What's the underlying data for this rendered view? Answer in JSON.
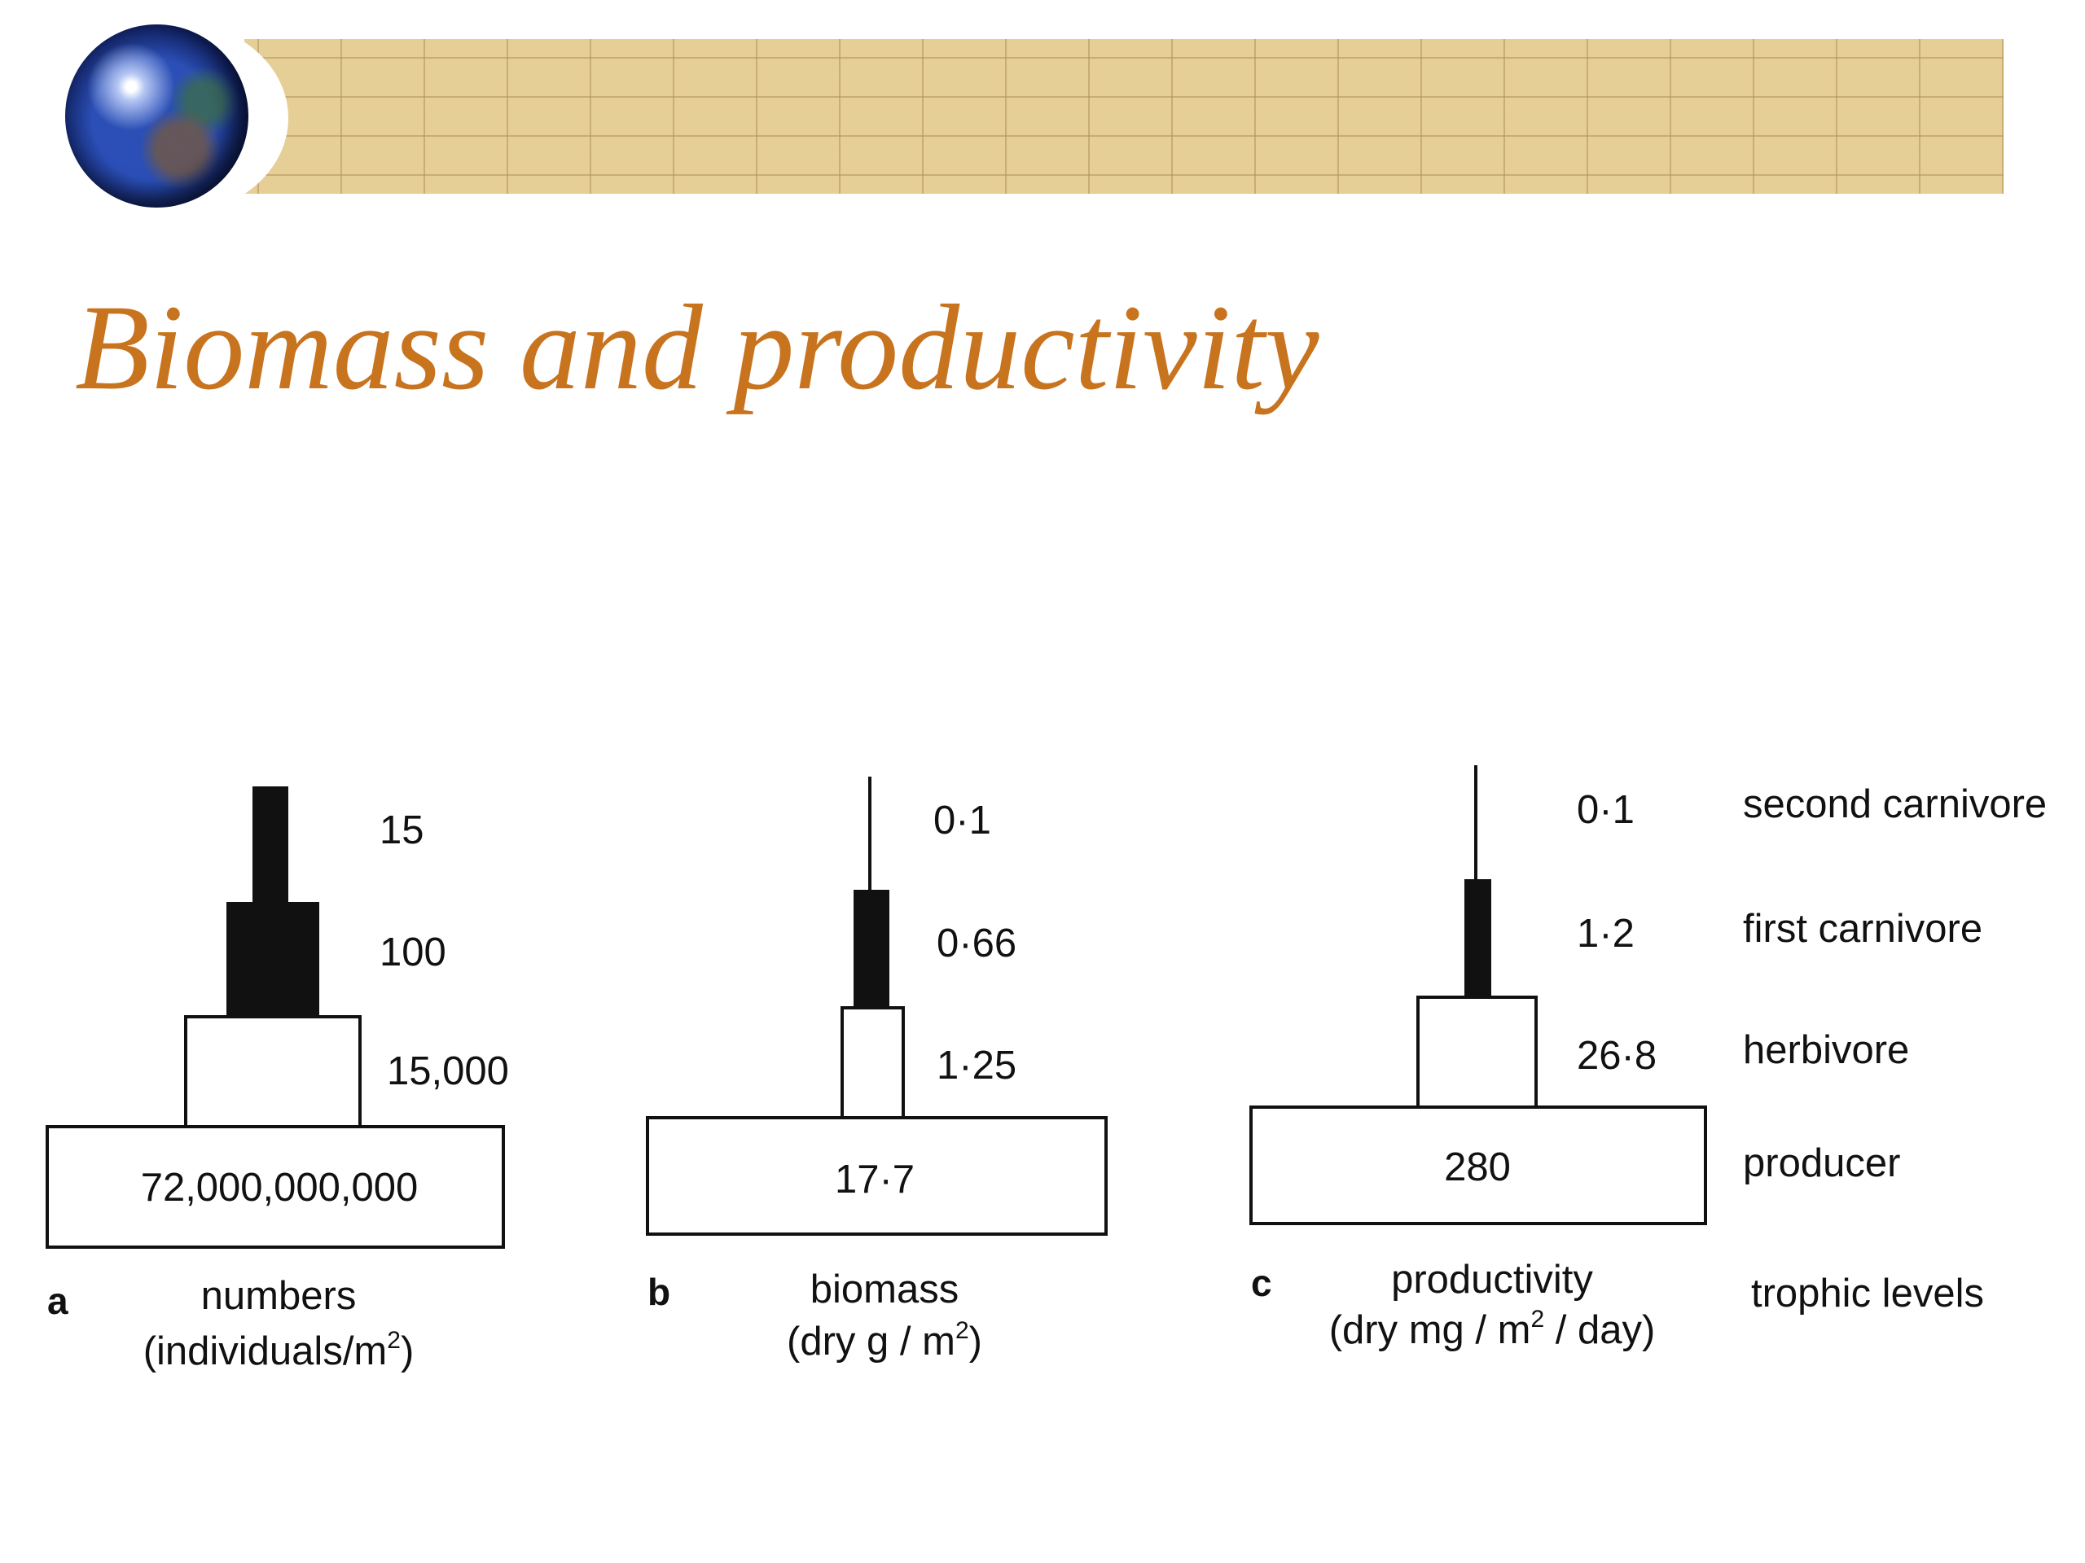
{
  "slide": {
    "title": "Biomass and productivity"
  },
  "panel_a": {
    "letter": "a",
    "caption_line1": "numbers",
    "caption_line2_main": "(individuals/m",
    "caption_line2_sup": "2",
    "caption_line2_end": ")",
    "values": [
      "15",
      "100",
      "15,000",
      "72,000,000,000"
    ]
  },
  "panel_b": {
    "letter": "b",
    "caption_line1": "biomass",
    "caption_line2_main": "(dry g / m",
    "caption_line2_sup": "2",
    "caption_line2_end": ")",
    "values": [
      "0·1",
      "0·66",
      "1·25",
      "17·7"
    ]
  },
  "panel_c": {
    "letter": "c",
    "caption_line1": "productivity",
    "caption_line2_main": "(dry mg / m",
    "caption_line2_sup": "2",
    "caption_line2_end": " / day)",
    "values": [
      "0·1",
      "1·2",
      "26·8",
      "280"
    ]
  },
  "trophic_levels": {
    "heading": "trophic levels",
    "levels": [
      "second carnivore",
      "first carnivore",
      "herbivore",
      "producer"
    ]
  }
}
